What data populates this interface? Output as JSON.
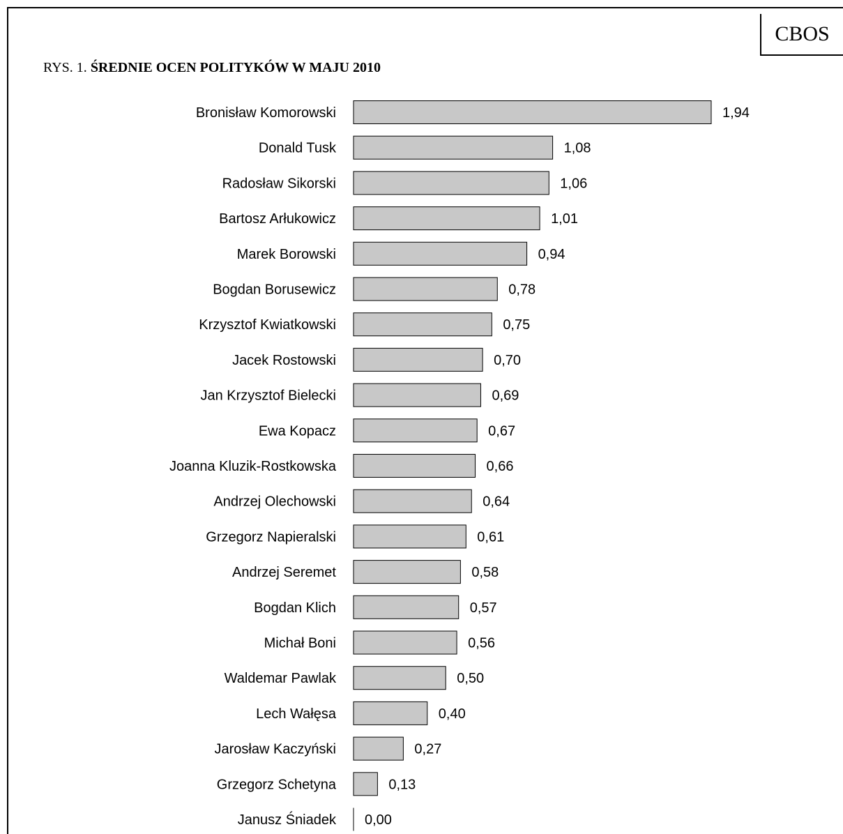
{
  "badge": "CBOS",
  "figure": {
    "prefix": "RYS. 1.",
    "title": "ŚREDNIE OCEN POLITYKÓW W MAJU 2010"
  },
  "chart_data": {
    "type": "bar",
    "orientation": "horizontal",
    "categories": [
      "Bronisław Komorowski",
      "Donald Tusk",
      "Radosław Sikorski",
      "Bartosz Arłukowicz",
      "Marek Borowski",
      "Bogdan Borusewicz",
      "Krzysztof Kwiatkowski",
      "Jacek Rostowski",
      "Jan Krzysztof Bielecki",
      "Ewa Kopacz",
      "Joanna Kluzik-Rostkowska",
      "Andrzej Olechowski",
      "Grzegorz Napieralski",
      "Andrzej Seremet",
      "Bogdan Klich",
      "Michał Boni",
      "Waldemar Pawlak",
      "Lech Wałęsa",
      "Jarosław Kaczyński",
      "Grzegorz Schetyna",
      "Janusz Śniadek"
    ],
    "values": [
      1.94,
      1.08,
      1.06,
      1.01,
      0.94,
      0.78,
      0.75,
      0.7,
      0.69,
      0.67,
      0.66,
      0.64,
      0.61,
      0.58,
      0.57,
      0.56,
      0.5,
      0.4,
      0.27,
      0.13,
      0.0
    ],
    "value_labels": [
      "1,94",
      "1,08",
      "1,06",
      "1,01",
      "0,94",
      "0,78",
      "0,75",
      "0,70",
      "0,69",
      "0,67",
      "0,66",
      "0,64",
      "0,61",
      "0,58",
      "0,57",
      "0,56",
      "0,50",
      "0,40",
      "0,27",
      "0,13",
      "0,00"
    ],
    "bar_color": "#c8c8c8",
    "bar_edge_color": "#000000",
    "xlim": [
      0,
      1.94
    ],
    "grid": false,
    "legend": false
  }
}
